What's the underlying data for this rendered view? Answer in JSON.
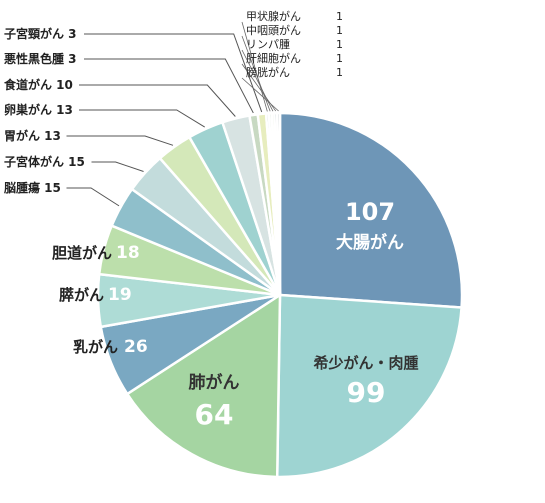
{
  "chart_data": {
    "type": "pie",
    "title": "",
    "slices": [
      {
        "label": "大腸がん",
        "value": 107,
        "color": "#6e96b7"
      },
      {
        "label": "希少がん・肉腫",
        "value": 99,
        "color": "#9ed4d2"
      },
      {
        "label": "肺がん",
        "value": 64,
        "color": "#a5d5a2"
      },
      {
        "label": "乳がん",
        "value": 26,
        "color": "#7aa8c2"
      },
      {
        "label": "膵がん",
        "value": 19,
        "color": "#aedcd6"
      },
      {
        "label": "胆道がん",
        "value": 18,
        "color": "#bcdfab"
      },
      {
        "label": "脳腫瘍",
        "value": 15,
        "color": "#8fbfcb"
      },
      {
        "label": "子宮体がん",
        "value": 15,
        "color": "#c3dcdc"
      },
      {
        "label": "胃がん",
        "value": 13,
        "color": "#d4e8b9"
      },
      {
        "label": "卵巣がん",
        "value": 13,
        "color": "#9fd2d0"
      },
      {
        "label": "食道がん",
        "value": 10,
        "color": "#d7e3e2"
      },
      {
        "label": "悪性黒色腫",
        "value": 3,
        "color": "#c8d9c2"
      },
      {
        "label": "子宮頸がん",
        "value": 3,
        "color": "#e7edbe"
      },
      {
        "label": "甲状腺がん",
        "value": 1,
        "color": "#bfc9cc"
      },
      {
        "label": "中咽頭がん",
        "value": 1,
        "color": "#cfe0d0"
      },
      {
        "label": "リンパ腫",
        "value": 1,
        "color": "#dfe8d5"
      },
      {
        "label": "肝細胞がん",
        "value": 1,
        "color": "#b6c3c8"
      },
      {
        "label": "膀胱がん",
        "value": 1,
        "color": "#a9b4b8"
      }
    ],
    "legend": "none"
  }
}
